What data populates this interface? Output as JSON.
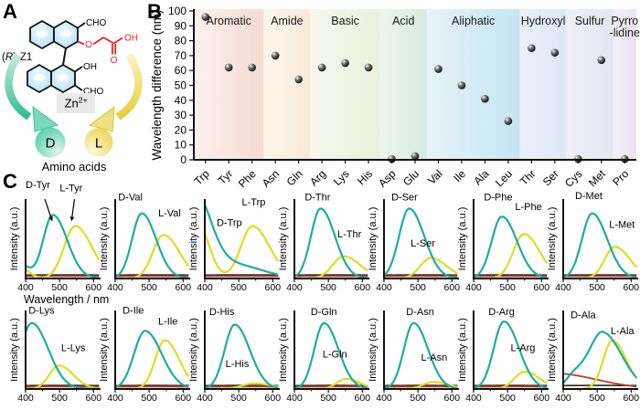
{
  "panel_a": {
    "label": "A",
    "compound": {
      "pre": "(",
      "italic": "R",
      "post": ")-Z1"
    },
    "structure": {
      "cho_top": "CHO",
      "ether_o": "O",
      "acid_oh": "OH",
      "carbonyl_o": "O",
      "naphthol_oh": "OH",
      "cho_bottom": "CHO"
    },
    "zinc": {
      "base": "Zn",
      "sup": "2+"
    },
    "d_circle": "D",
    "l_circle": "L",
    "caption": "Amino acids",
    "colors": {
      "ring_fill": "#bfe7f6",
      "red": "#e8202e",
      "d_teal": "#41c49e",
      "l_yellow": "#e6cf3a"
    }
  },
  "chart_data": [
    {
      "id": "panel-b",
      "panel_label": "B",
      "type": "scatter",
      "ylabel": "Wavelength difference (nm)",
      "ylim": [
        0,
        100
      ],
      "yticks": [
        0,
        10,
        20,
        30,
        40,
        50,
        60,
        70,
        80,
        90,
        100
      ],
      "categories": [
        "Trp",
        "Tyr",
        "Phe",
        "Asn",
        "Gln",
        "Arg",
        "Lys",
        "His",
        "Asp",
        "Glu",
        "Val",
        "Ile",
        "Ala",
        "Leu",
        "Thr",
        "Ser",
        "Cys",
        "Met",
        "Pro"
      ],
      "values": [
        96,
        62,
        62,
        70,
        54,
        62,
        65,
        62,
        0.5,
        2.5,
        61,
        50,
        41,
        26,
        75,
        72,
        0.5,
        67,
        0.5
      ],
      "point_color": "#000000",
      "groups": [
        {
          "label": "Aromatic",
          "count": 3,
          "from": "#fcf1ed",
          "to": "#f5dbd3"
        },
        {
          "label": "Amide",
          "count": 2,
          "from": "#fdf6ec",
          "to": "#f8ead5"
        },
        {
          "label": "Basic",
          "count": 3,
          "from": "#f5f8ee",
          "to": "#e9f2dc"
        },
        {
          "label": "Acid",
          "count": 2,
          "from": "#edf5f0",
          "to": "#d6ebe1"
        },
        {
          "label": "Aliphatic",
          "count": 4,
          "from": "#e7f3f8",
          "to": "#c4e5f1"
        },
        {
          "label": "Hydroxyl",
          "count": 2,
          "from": "#ebf0fa",
          "to": "#dee8f6"
        },
        {
          "label": "Sulfur",
          "count": 2,
          "from": "#eef0f7",
          "to": "#e3e7f2"
        },
        {
          "label": "Pyrro\n-lidine",
          "count": 1,
          "from": "#f4eff7",
          "to": "#ebe3f0"
        }
      ]
    },
    {
      "id": "panel-c",
      "panel_label": "C",
      "type": "line",
      "xlabel": "Wavelength / nm",
      "ylabel": "Intensity (a.u.)",
      "xrange": [
        400,
        618
      ],
      "xticks": [
        400,
        500,
        600
      ],
      "x_minor_ticks": [
        450,
        550
      ],
      "colors": {
        "d": "#1cada0",
        "l": "#dedd22",
        "blank_black": "#2b2b2b",
        "blank_red": "#bf3a2e"
      },
      "black_baseline": [
        [
          500,
          0.045,
          500
        ]
      ],
      "red_baseline": [
        [
          500,
          0.03,
          500
        ]
      ],
      "rows": [
        [
          {
            "d_label": "D-Tyr",
            "l_label": "L-Tyr",
            "d_peaks": [
              [
                480,
                0.8,
                40
              ],
              [
                392,
                0.15,
                20
              ]
            ],
            "l_peaks": [
              [
                546,
                0.66,
                46
              ],
              [
                386,
                0.13,
                24
              ]
            ],
            "d_label_pos": [
              0.0,
              -0.14
            ],
            "l_label_pos": [
              0.46,
              -0.1
            ],
            "d_arrow": [
              0.26,
              0.0,
              0.36,
              0.28
            ],
            "l_arrow": [
              0.66,
              0.0,
              0.62,
              0.28
            ]
          },
          {
            "d_label": "D-Val",
            "l_label": "L-Val",
            "d_peaks": [
              [
                478,
                0.82,
                40
              ]
            ],
            "l_peaks": [
              [
                542,
                0.55,
                44
              ]
            ],
            "d_label_pos": [
              0.04,
              0.02
            ],
            "l_label_pos": [
              0.58,
              0.22
            ]
          },
          {
            "d_label": "D-Trp",
            "l_label": "L-Trp",
            "d_peaks": [
              [
                374,
                1.02,
                42
              ],
              [
                480,
                0.18,
                80
              ]
            ],
            "l_peaks": [
              [
                378,
                0.7,
                32
              ],
              [
                540,
                0.66,
                48
              ]
            ],
            "d_label_pos": [
              0.16,
              0.34
            ],
            "l_label_pos": [
              0.5,
              0.08
            ]
          },
          {
            "d_label": "D-Thr",
            "l_label": "L-Thr",
            "d_peaks": [
              [
                477,
                0.88,
                40
              ]
            ],
            "l_peaks": [
              [
                545,
                0.28,
                46
              ]
            ],
            "d_label_pos": [
              0.14,
              0.02
            ],
            "l_label_pos": [
              0.58,
              0.48
            ]
          },
          {
            "d_label": "D-Ser",
            "l_label": "L-Ser",
            "d_peaks": [
              [
                474,
                0.88,
                42
              ]
            ],
            "l_peaks": [
              [
                538,
                0.26,
                44
              ]
            ],
            "d_label_pos": [
              0.1,
              0.02
            ],
            "l_label_pos": [
              0.36,
              0.6
            ]
          },
          {
            "d_label": "D-Phe",
            "l_label": "L-Phe",
            "d_peaks": [
              [
                483,
                0.78,
                42
              ]
            ],
            "l_peaks": [
              [
                548,
                0.56,
                44
              ]
            ],
            "d_label_pos": [
              0.14,
              0.02
            ],
            "l_label_pos": [
              0.56,
              0.14
            ]
          },
          {
            "d_label": "D-Met",
            "l_label": "L-Met",
            "d_peaks": [
              [
                485,
                0.82,
                42
              ]
            ],
            "l_peaks": [
              [
                552,
                0.4,
                42
              ]
            ],
            "d_label_pos": [
              0.16,
              0.0
            ],
            "l_label_pos": [
              0.62,
              0.36
            ]
          }
        ],
        [
          {
            "d_label": "D-Lys",
            "l_label": "L-Lys",
            "d_peaks": [
              [
                418,
                0.84,
                46
              ]
            ],
            "l_peaks": [
              [
                498,
                0.3,
                40
              ]
            ],
            "d_label_pos": [
              0.04,
              0.04
            ],
            "l_label_pos": [
              0.48,
              0.52
            ]
          },
          {
            "d_label": "D-Ile",
            "l_label": "L-Ile",
            "d_peaks": [
              [
                488,
                0.74,
                46
              ]
            ],
            "l_peaks": [
              [
                546,
                0.62,
                40
              ]
            ],
            "d_label_pos": [
              0.1,
              0.04
            ],
            "l_label_pos": [
              0.58,
              0.18
            ]
          },
          {
            "d_label": "D-His",
            "l_label": "L-His",
            "d_peaks": [
              [
                488,
                0.82,
                42
              ]
            ],
            "l_peaks": [
              [
                545,
                0.07,
                50
              ]
            ],
            "d_label_pos": [
              0.06,
              0.06
            ],
            "l_label_pos": [
              0.28,
              0.72
            ]
          },
          {
            "d_label": "D-Gln",
            "l_label": "L-Gln",
            "d_peaks": [
              [
                487,
                0.84,
                40
              ]
            ],
            "l_peaks": [
              [
                552,
                0.13,
                38
              ]
            ],
            "d_label_pos": [
              0.22,
              0.06
            ],
            "l_label_pos": [
              0.38,
              0.6
            ]
          },
          {
            "d_label": "D-Asn",
            "l_label": "L-Asn",
            "d_peaks": [
              [
                487,
                0.84,
                40
              ]
            ],
            "l_peaks": [
              [
                545,
                0.09,
                42
              ]
            ],
            "d_label_pos": [
              0.3,
              0.06
            ],
            "l_label_pos": [
              0.5,
              0.64
            ]
          },
          {
            "d_label": "D-Arg",
            "l_label": "L-Arg",
            "d_peaks": [
              [
                489,
                0.86,
                42
              ]
            ],
            "l_peaks": [
              [
                550,
                0.22,
                42
              ]
            ],
            "d_label_pos": [
              0.2,
              0.06
            ],
            "l_label_pos": [
              0.5,
              0.52
            ]
          },
          {
            "d_label": "D-Ala",
            "l_label": "L-Ala",
            "d_peaks": [
              [
                518,
                0.7,
                52
              ],
              [
                438,
                0.2,
                38
              ]
            ],
            "l_peaks": [
              [
                545,
                0.62,
                38
              ]
            ],
            "red_peaks": [
              [
                370,
                0.2,
                120
              ]
            ],
            "d_label_pos": [
              0.1,
              0.1
            ],
            "l_label_pos": [
              0.64,
              0.3
            ]
          }
        ]
      ]
    }
  ]
}
